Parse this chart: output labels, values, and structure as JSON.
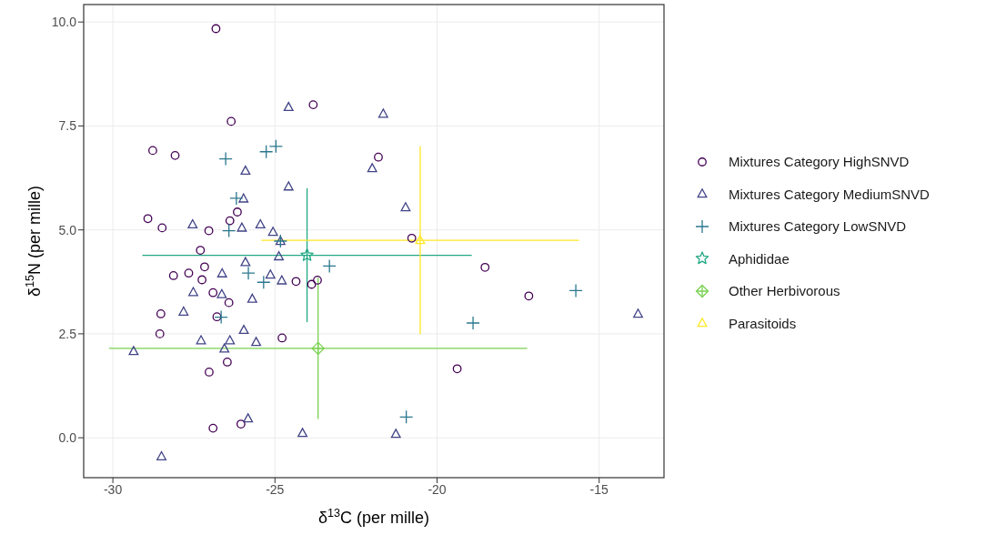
{
  "chart_data": {
    "type": "scatter",
    "xlabel": "δ$^{13}$C (per mille)",
    "ylabel": "δ$^{15}$N (per mille)",
    "xlim": [
      -30.9,
      -13.0
    ],
    "ylim": [
      -0.96,
      10.42
    ],
    "xticks": [
      -30,
      -25,
      -20,
      -15
    ],
    "yticks": [
      {
        "value": 0,
        "label": "0.0"
      },
      2.5,
      {
        "value": 5,
        "label": "5.0"
      },
      7.5,
      {
        "value": 10,
        "label": "10.0"
      }
    ],
    "grid": true,
    "legend": "right",
    "series": [
      {
        "name": "Mixtures Category HighSNVD",
        "color": "#440154",
        "marker": "circle",
        "x": [
          -26.82,
          -23.82,
          -26.35,
          -28.77,
          -28.08,
          -26.16,
          -26.39,
          -28.92,
          -28.48,
          -27.04,
          -21.81,
          -20.78,
          -27.3,
          -27.17,
          -27.66,
          -28.13,
          -27.25,
          -24.35,
          -23.87,
          -23.69,
          -26.91,
          -26.42,
          -28.52,
          -26.79,
          -28.55,
          -24.78,
          -26.47,
          -27.03,
          -26.91,
          -26.05,
          -18.52,
          -17.17,
          -19.38
        ],
        "values": [
          9.84,
          8.01,
          7.61,
          6.91,
          6.79,
          5.43,
          5.22,
          5.27,
          5.05,
          4.98,
          6.75,
          4.8,
          4.51,
          4.11,
          3.96,
          3.9,
          3.8,
          3.76,
          3.69,
          3.79,
          3.49,
          3.25,
          2.98,
          2.91,
          2.5,
          2.4,
          1.82,
          1.58,
          0.23,
          0.33,
          4.1,
          3.41,
          1.66
        ]
      },
      {
        "name": "Mixtures Category MediumSNVD",
        "color": "#414487",
        "marker": "triangle",
        "x": [
          -24.58,
          -25.91,
          -24.58,
          -25.97,
          -27.54,
          -26.02,
          -25.45,
          -25.06,
          -22.0,
          -21.66,
          -20.97,
          -24.83,
          -24.88,
          -25.91,
          -26.63,
          -25.14,
          -24.79,
          -27.52,
          -26.64,
          -25.7,
          -27.82,
          -25.96,
          -27.28,
          -26.39,
          -25.58,
          -26.56,
          -29.36,
          -25.83,
          -24.15,
          -28.5,
          -13.8,
          -21.27
        ],
        "values": [
          7.95,
          6.42,
          6.04,
          5.75,
          5.13,
          5.05,
          5.13,
          4.95,
          6.48,
          7.79,
          5.54,
          4.73,
          4.36,
          4.22,
          3.95,
          3.92,
          3.78,
          3.5,
          3.45,
          3.34,
          3.03,
          2.59,
          2.34,
          2.34,
          2.3,
          2.14,
          2.08,
          0.46,
          0.11,
          -0.45,
          2.98,
          0.09
        ]
      },
      {
        "name": "Mixtures Category LowSNVD",
        "color": "#2a788e",
        "marker": "cross",
        "x": [
          -26.52,
          -25.27,
          -24.97,
          -26.19,
          -26.42,
          -25.82,
          -25.35,
          -26.66,
          -23.32,
          -24.83,
          -18.89,
          -15.72,
          -20.95
        ],
        "values": [
          6.71,
          6.88,
          7.01,
          5.76,
          4.98,
          3.96,
          3.74,
          2.9,
          4.13,
          4.73,
          2.76,
          3.54,
          0.5
        ]
      },
      {
        "name": "Aphididae",
        "color": "#22a884",
        "marker": "star",
        "x": [
          -24.01
        ],
        "values": [
          4.39
        ],
        "xerrors": [
          5.08
        ],
        "errors": [
          1.61
        ]
      },
      {
        "name": "Other Herbivorous",
        "color": "#7ad151",
        "marker": "diamond",
        "x": [
          -23.67
        ],
        "values": [
          2.15
        ],
        "xerrors": [
          6.45
        ],
        "errors": [
          1.7
        ]
      },
      {
        "name": "Parasitoids",
        "color": "#fde725",
        "marker": "triangle",
        "x": [
          -20.52
        ],
        "values": [
          4.75
        ],
        "xerrors": [
          4.9
        ],
        "errors": [
          2.26
        ]
      }
    ]
  }
}
